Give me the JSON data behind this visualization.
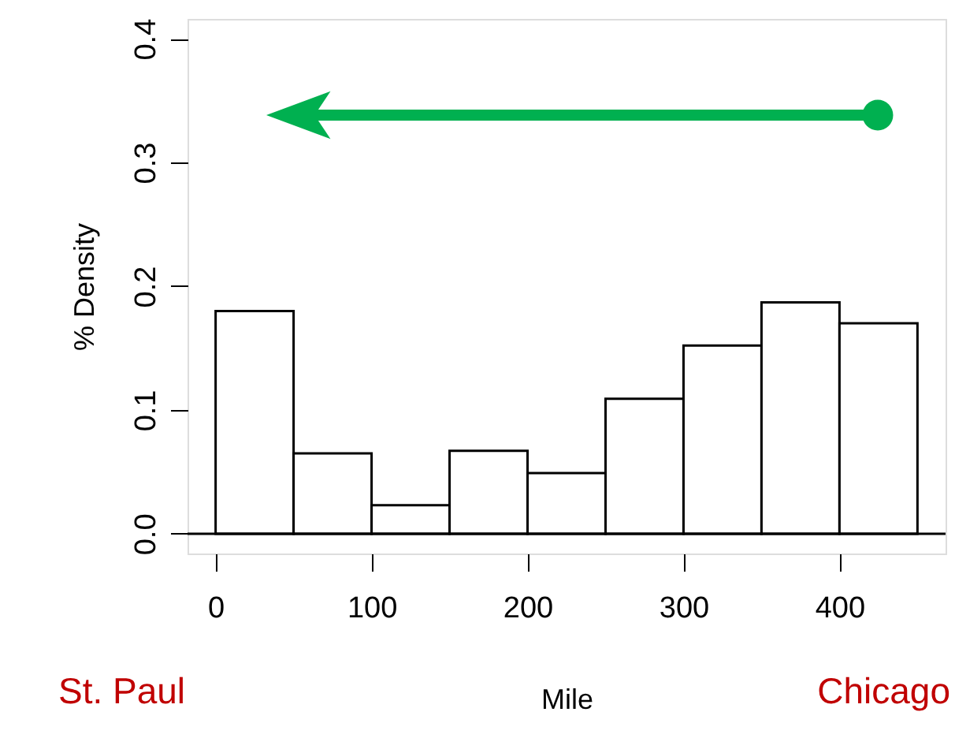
{
  "chart_data": {
    "type": "histogram",
    "xlabel": "Mile",
    "ylabel": "% Density",
    "bins": [
      0,
      50,
      100,
      150,
      200,
      250,
      300,
      350,
      400,
      450
    ],
    "values": [
      0.18,
      0.065,
      0.023,
      0.067,
      0.049,
      0.109,
      0.152,
      0.187,
      0.17
    ],
    "color": "#ffffff",
    "xlim": [
      -18,
      468
    ],
    "xticks": [
      0,
      100,
      200,
      300,
      400
    ],
    "ylim": [
      -0.016,
      0.416
    ],
    "yticks": [
      {
        "value": 0,
        "label": "0.0"
      },
      0.1,
      0.2,
      0.3,
      0.4
    ],
    "ref_lines": [
      {
        "axis": "y",
        "value": 0,
        "color": "#000000"
      }
    ],
    "annotations": [
      "St. Paul",
      "Chicago"
    ],
    "grid": false
  }
}
